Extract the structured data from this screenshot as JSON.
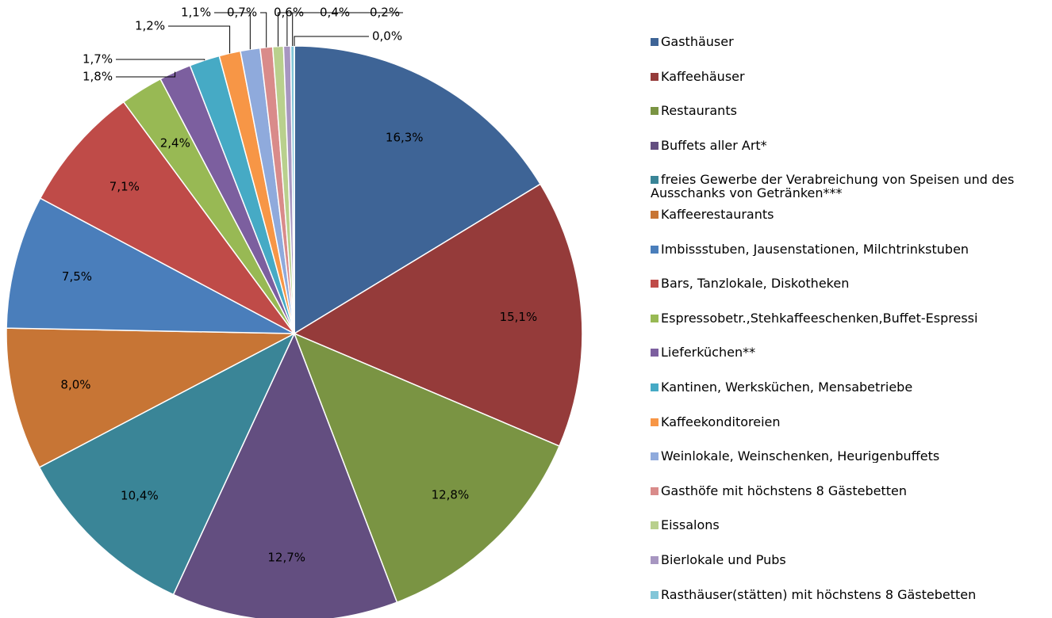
{
  "chart_data": {
    "type": "pie",
    "categories": [
      "Gasthäuser",
      "Kaffeehäuser",
      "Restaurants",
      "Buffets aller Art*",
      "freies Gewerbe der Verabreichung von Speisen und des Ausschanks von Getränken***",
      "Kaffeerestaurants",
      "Imbissstuben, Jausenstationen, Milchtrinkstuben",
      "Bars, Tanzlokale, Diskotheken",
      "Espressobetr.,Stehkaffeeschenken,Buffet-Espressi",
      "Lieferküchen**",
      "Kantinen, Werksküchen, Mensabetriebe",
      "Kaffeekonditoreien",
      "Weinlokale, Weinschenken, Heurigenbuffets",
      "Gasthöfe mit höchstens 8 Gästebetten",
      "Eissalons",
      "Bierlokale und Pubs",
      "Rasthäuser(stätten) mit höchstens 8 Gästebetten",
      null
    ],
    "values": [
      16.3,
      15.1,
      12.8,
      12.7,
      10.4,
      8.0,
      7.5,
      7.1,
      2.4,
      1.8,
      1.7,
      1.2,
      1.1,
      0.7,
      0.6,
      0.4,
      0.2,
      0.0
    ],
    "value_labels": [
      "16,3%",
      "15,1%",
      "12,8%",
      "12,7%",
      "10,4%",
      "8,0%",
      "7,5%",
      "7,1%",
      "2,4%",
      "1,8%",
      "1,7%",
      "1,2%",
      "1,1%",
      "0,7%",
      "0,6%",
      "0,4%",
      "0,2%",
      "0,0%"
    ],
    "colors": [
      "#3e6496",
      "#953b3a",
      "#7a9443",
      "#634e80",
      "#3a8597",
      "#c77535",
      "#4a7ebb",
      "#bf4b48",
      "#98b954",
      "#7c5f9f",
      "#46aac5",
      "#f79646",
      "#8faadc",
      "#d98b8a",
      "#b9d08d",
      "#a796c1",
      "#82c6d8",
      "#f9b98b"
    ],
    "legend": "right"
  }
}
